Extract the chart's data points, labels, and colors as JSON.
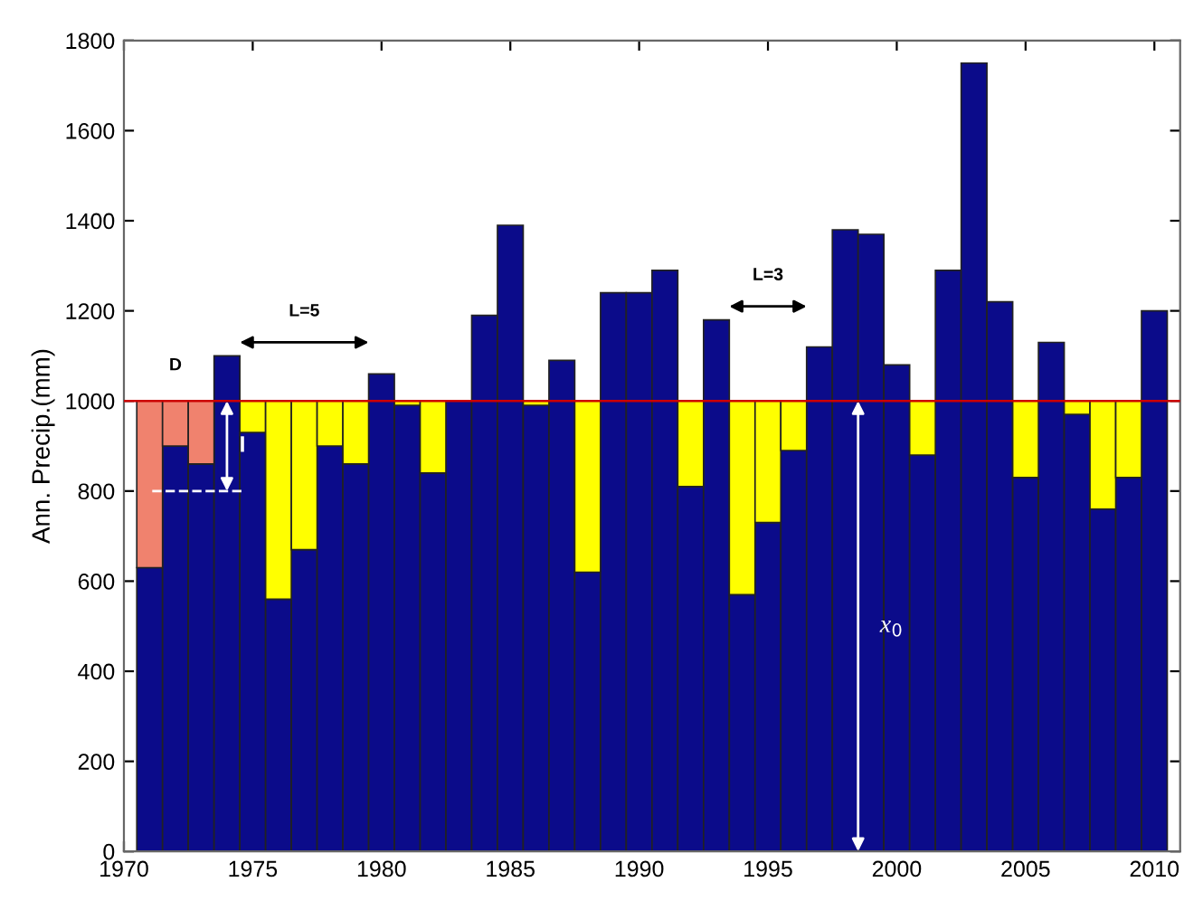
{
  "chart_data": {
    "type": "bar",
    "ylabel": "Ann. Precip.(mm)",
    "xlim": [
      1970,
      2011
    ],
    "xticks": [
      1970,
      1975,
      1980,
      1985,
      1990,
      1995,
      2000,
      2005,
      2010
    ],
    "ylim": [
      0,
      1800
    ],
    "yticks": [
      0,
      200,
      400,
      600,
      800,
      1000,
      1200,
      1400,
      1600,
      1800
    ],
    "grid": false,
    "legend": false,
    "series": [
      {
        "color": "#0b0b8a",
        "x": [
          1971,
          1972,
          1973,
          1974,
          1975,
          1976,
          1977,
          1978,
          1979,
          1980,
          1981,
          1982,
          1983,
          1984,
          1985,
          1986,
          1987,
          1988,
          1989,
          1990,
          1991,
          1992,
          1993,
          1994,
          1995,
          1996,
          1997,
          1998,
          1999,
          2000,
          2001,
          2002,
          2003,
          2004,
          2005,
          2006,
          2007,
          2008,
          2009,
          2010
        ],
        "values": [
          630,
          900,
          860,
          1100,
          930,
          560,
          670,
          900,
          860,
          1060,
          990,
          840,
          1000,
          1190,
          1390,
          990,
          1090,
          620,
          1240,
          1240,
          1290,
          810,
          1180,
          570,
          730,
          890,
          1120,
          1380,
          1370,
          1080,
          880,
          1290,
          1750,
          1220,
          830,
          1130,
          970,
          760,
          830,
          1200
        ]
      },
      {
        "color": "#f0826e",
        "x": [
          1971,
          1972,
          1973
        ],
        "base": [
          630,
          900,
          860
        ],
        "values": [
          370,
          100,
          140
        ]
      },
      {
        "color": "#ffff00",
        "x": [
          1975,
          1976,
          1977,
          1978,
          1979,
          1981,
          1982,
          1986,
          1988,
          1992,
          1994,
          1995,
          1996,
          2001,
          2005,
          2007,
          2008,
          2009
        ],
        "base": [
          930,
          560,
          670,
          900,
          860,
          990,
          840,
          990,
          620,
          810,
          570,
          730,
          890,
          880,
          830,
          970,
          760,
          830
        ],
        "values": [
          70,
          440,
          330,
          100,
          140,
          10,
          160,
          10,
          380,
          190,
          430,
          270,
          110,
          120,
          170,
          30,
          240,
          170
        ]
      }
    ],
    "ref_lines": [
      {
        "axis": "y",
        "value": 1000,
        "color": "#cc0000",
        "line_style": "solid"
      }
    ],
    "annotations": [
      "D",
      "L=5",
      "L=3",
      {
        "text": "I",
        "x": 1974.6,
        "y": 900
      },
      {
        "text": "x$_{0}$",
        "x": 1999.8,
        "y": 500
      }
    ]
  }
}
